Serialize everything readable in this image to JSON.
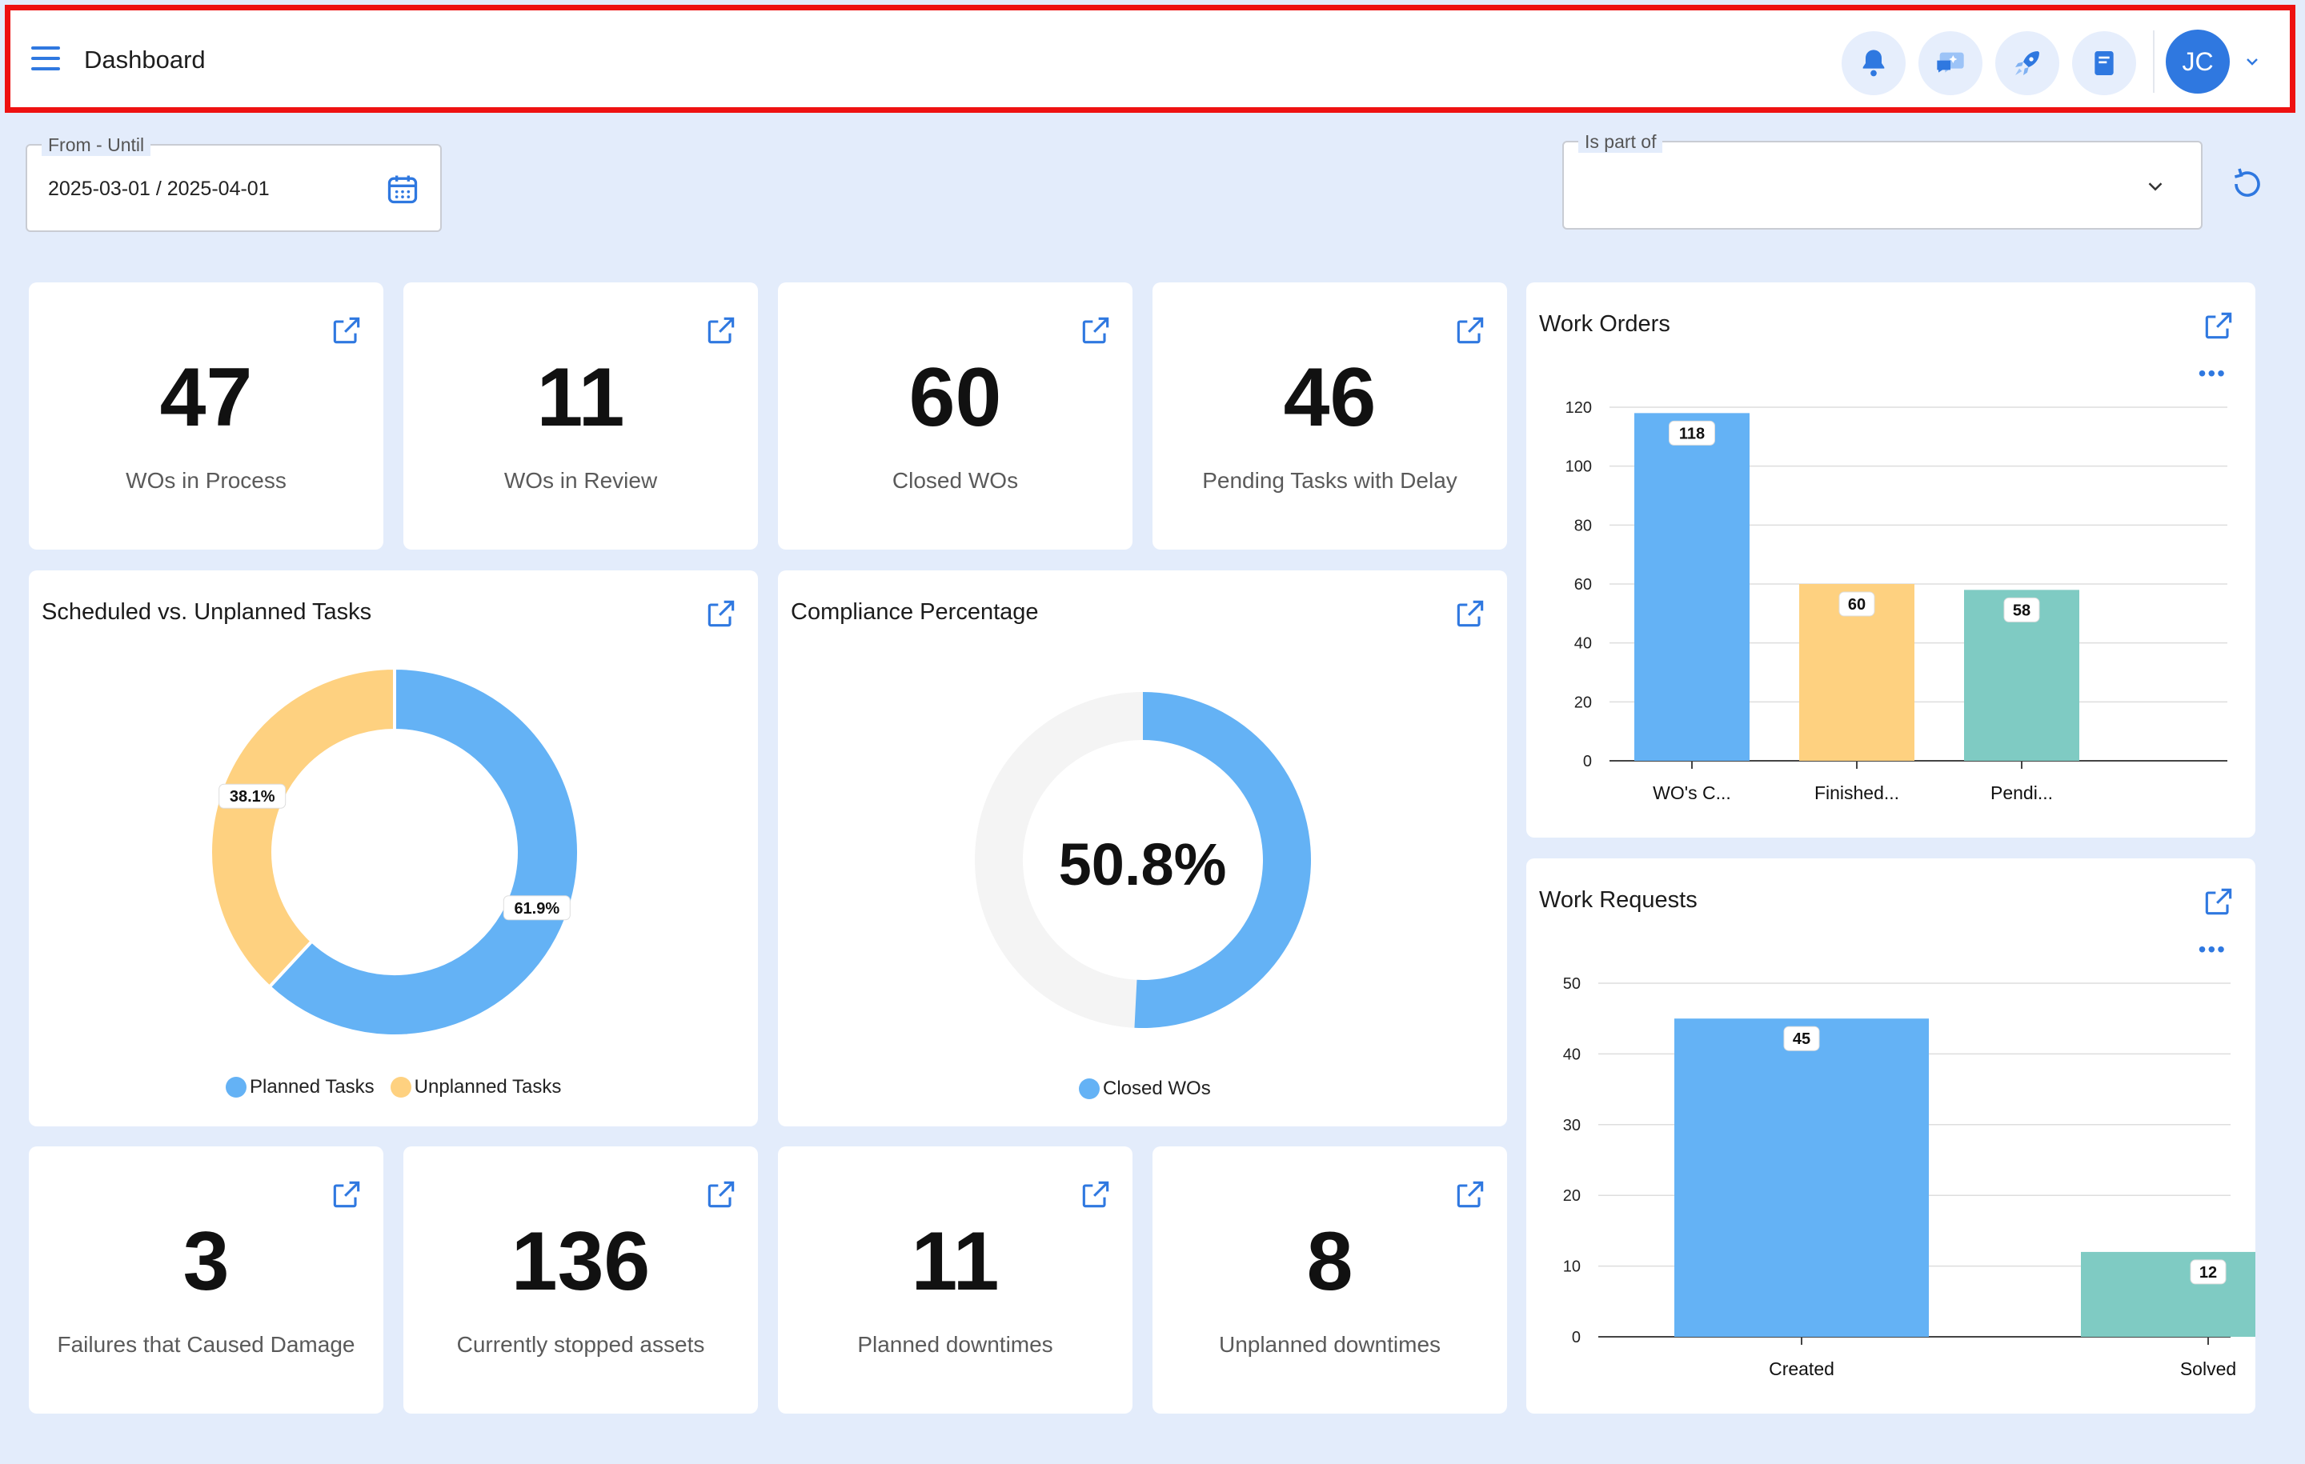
{
  "header": {
    "title": "Dashboard",
    "avatar_initials": "JC",
    "buttons": [
      "bell-icon",
      "chat-sparkle-icon",
      "rocket-icon",
      "notebook-icon"
    ]
  },
  "filters": {
    "date_range": {
      "label": "From - Until",
      "value": "2025-03-01 / 2025-04-01"
    },
    "is_part_of": {
      "label": "Is part of",
      "value": ""
    }
  },
  "kpis_top": [
    {
      "value": "47",
      "label": "WOs in Process"
    },
    {
      "value": "11",
      "label": "WOs in Review"
    },
    {
      "value": "60",
      "label": "Closed WOs"
    },
    {
      "value": "46",
      "label": "Pending Tasks with Delay"
    }
  ],
  "kpis_bottom": [
    {
      "value": "3",
      "label": "Failures that Caused Damage"
    },
    {
      "value": "136",
      "label": "Currently stopped assets"
    },
    {
      "value": "11",
      "label": "Planned downtimes"
    },
    {
      "value": "8",
      "label": "Unplanned downtimes"
    }
  ],
  "scheduled_chart": {
    "title": "Scheduled vs. Unplanned Tasks",
    "chart_data": {
      "type": "pie",
      "donut": true,
      "labels": [
        "Planned Tasks",
        "Unplanned Tasks"
      ],
      "values": [
        61.9,
        38.1
      ],
      "value_labels": [
        "61.9%",
        "38.1%"
      ],
      "colors": [
        "#64b2f5",
        "#fed180"
      ],
      "legend": "bottom"
    }
  },
  "compliance_chart": {
    "title": "Compliance Percentage",
    "center_label": "50.8%",
    "chart_data": {
      "type": "pie",
      "donut": true,
      "labels": [
        "Closed WOs"
      ],
      "values": [
        50.8
      ],
      "colors": [
        "#64b2f5",
        "#f4f4f4"
      ],
      "legend": "bottom"
    }
  },
  "work_orders_chart": {
    "title": "Work Orders",
    "chart_data": {
      "type": "bar",
      "categories": [
        "WO's C...",
        "Finished...",
        "Pendi..."
      ],
      "values": [
        118,
        60,
        58
      ],
      "colors": [
        "#64b2f5",
        "#fed180",
        "#7fcbc3"
      ],
      "yticks": [
        0,
        20,
        40,
        60,
        80,
        100,
        120
      ],
      "ylim": [
        0,
        120
      ],
      "grid": true
    }
  },
  "work_requests_chart": {
    "title": "Work Requests",
    "chart_data": {
      "type": "bar",
      "categories": [
        "Created",
        "Solved"
      ],
      "values": [
        45,
        12
      ],
      "colors": [
        "#64b2f5",
        "#7fcbc3"
      ],
      "yticks": [
        0,
        10,
        20,
        30,
        40,
        50
      ],
      "ylim": [
        0,
        50
      ],
      "grid": true
    }
  }
}
